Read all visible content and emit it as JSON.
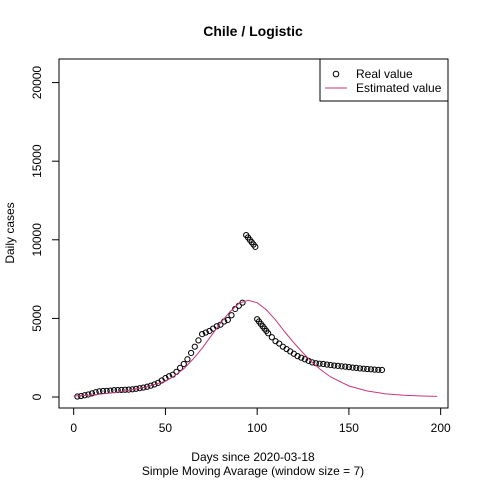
{
  "chart_data": {
    "type": "scatter",
    "title": "Chile / Logistic",
    "xlabel": "Days since 2020-03-18",
    "xlabel_sub": "Simple Moving Avarage (window size = 7)",
    "ylabel": "Daily cases",
    "xlim": [
      -8,
      204
    ],
    "ylim": [
      -700,
      21500
    ],
    "xticks": [
      0,
      50,
      100,
      150,
      200
    ],
    "yticks": [
      0,
      5000,
      10000,
      15000,
      20000
    ],
    "grid": false,
    "legend": {
      "position": "top-right",
      "entries": [
        {
          "label": "Real value",
          "marker": "circle",
          "color": "#000000"
        },
        {
          "label": "Estimated value",
          "marker": "line",
          "color": "#c8387a"
        }
      ]
    },
    "series": [
      {
        "name": "Real value",
        "kind": "points",
        "color": "#000000",
        "x": [
          2,
          4,
          6,
          8,
          10,
          12,
          14,
          16,
          18,
          20,
          22,
          24,
          26,
          28,
          30,
          32,
          34,
          36,
          38,
          40,
          42,
          44,
          46,
          48,
          50,
          52,
          54,
          56,
          58,
          60,
          62,
          64,
          66,
          68,
          70,
          72,
          74,
          76,
          78,
          80,
          82,
          84,
          86,
          88,
          90,
          92,
          94,
          95,
          96,
          97,
          98,
          99,
          100,
          101,
          102,
          103,
          104,
          105,
          106,
          108,
          110,
          112,
          114,
          116,
          118,
          120,
          122,
          124,
          126,
          128,
          130,
          132,
          134,
          136,
          138,
          140,
          142,
          144,
          146,
          148,
          150,
          152,
          154,
          156,
          158,
          160,
          162,
          164,
          166,
          168
        ],
        "y": [
          30,
          60,
          110,
          160,
          230,
          300,
          360,
          380,
          390,
          410,
          430,
          440,
          450,
          460,
          470,
          490,
          520,
          560,
          600,
          650,
          720,
          800,
          900,
          1050,
          1200,
          1320,
          1420,
          1600,
          1850,
          2100,
          2400,
          2800,
          3200,
          3600,
          4000,
          4100,
          4200,
          4350,
          4500,
          4600,
          4800,
          4900,
          5200,
          5600,
          5800,
          6000,
          10300,
          10150,
          10000,
          9850,
          9700,
          9550,
          4950,
          4800,
          4650,
          4500,
          4350,
          4200,
          4050,
          3800,
          3550,
          3400,
          3200,
          3050,
          2900,
          2750,
          2600,
          2500,
          2400,
          2300,
          2200,
          2150,
          2120,
          2100,
          2060,
          2030,
          2000,
          1980,
          1950,
          1930,
          1900,
          1870,
          1850,
          1820,
          1800,
          1780,
          1760,
          1740,
          1730,
          1720
        ]
      },
      {
        "name": "Estimated value",
        "kind": "line",
        "color": "#c8387a",
        "x": [
          0,
          10,
          20,
          30,
          40,
          50,
          55,
          60,
          65,
          70,
          75,
          80,
          85,
          90,
          95,
          100,
          105,
          110,
          115,
          120,
          125,
          130,
          135,
          140,
          150,
          160,
          170,
          180,
          190,
          198
        ],
        "y": [
          60,
          130,
          250,
          420,
          650,
          1000,
          1350,
          1800,
          2400,
          3100,
          3900,
          4700,
          5400,
          5950,
          6150,
          6000,
          5550,
          4900,
          4150,
          3450,
          2800,
          2200,
          1700,
          1280,
          700,
          380,
          200,
          110,
          60,
          40
        ]
      }
    ]
  }
}
